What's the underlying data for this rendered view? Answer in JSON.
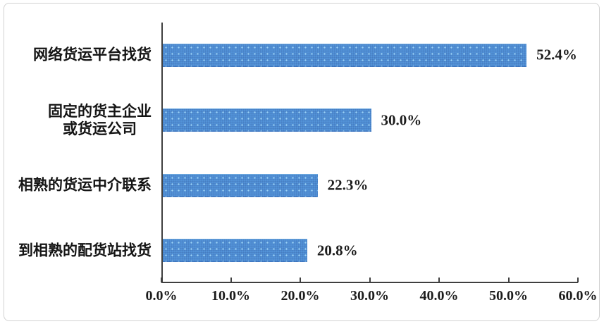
{
  "chart_data": {
    "type": "bar",
    "orientation": "horizontal",
    "title": "",
    "xlabel": "",
    "ylabel": "",
    "categories": [
      "网络货运平台找货",
      "固定的货主企业\n或货运公司",
      "相熟的货运中介联系",
      "到相熟的配货站找货"
    ],
    "values": [
      52.4,
      30.0,
      22.3,
      20.8
    ],
    "value_labels": [
      "52.4%",
      "30.0%",
      "22.3%",
      "20.8%"
    ],
    "x_ticks": [
      "0.0%",
      "10.0%",
      "20.0%",
      "30.0%",
      "40.0%",
      "50.0%",
      "60.0%"
    ],
    "x_tick_values": [
      0,
      10,
      20,
      30,
      40,
      50,
      60
    ],
    "xlim": [
      0,
      60
    ],
    "grid": false,
    "legend": false,
    "bar_color": "#5292d7",
    "axis_color": "#3f3f3f",
    "frame_border_color": "#d2d2d2",
    "background_color": "#ffffff"
  }
}
